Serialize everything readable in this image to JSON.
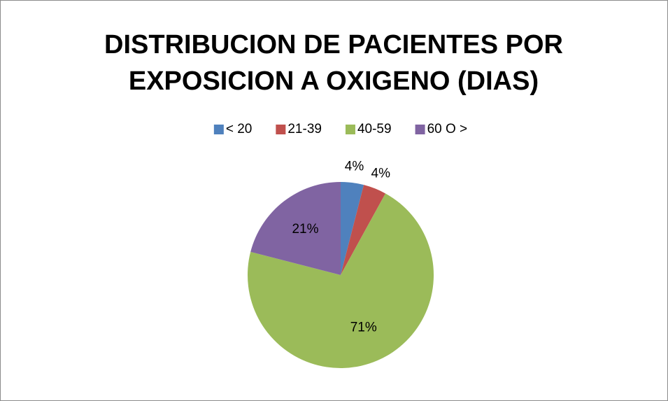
{
  "chart_data": {
    "type": "pie",
    "title": "DISTRIBUCION DE PACIENTES POR EXPOSICION A OXIGENO (DIAS)",
    "categories": [
      "< 20",
      "21-39",
      "40-59",
      "60 O >"
    ],
    "values": [
      4,
      4,
      71,
      21
    ],
    "value_labels": [
      "4%",
      "4%",
      "71%",
      "21%"
    ],
    "colors": [
      "#4f81bd",
      "#c0504d",
      "#9bbb59",
      "#8064a2"
    ],
    "legend": "top"
  }
}
